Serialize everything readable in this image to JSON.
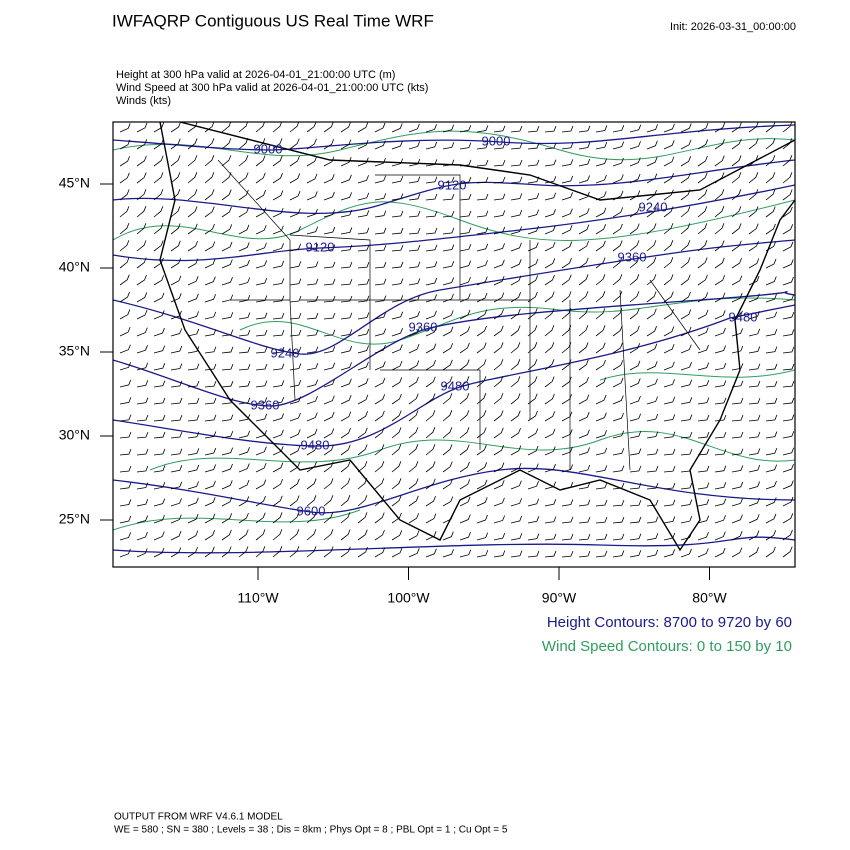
{
  "header": {
    "title": "IWFAQRP Contiguous US Real Time WRF",
    "init": "Init: 2026-03-31_00:00:00",
    "fields": [
      "Height at 300 hPa valid at 2026-04-01_21:00:00 UTC   (m)",
      "Wind Speed at 300 hPa valid at 2026-04-01_21:00:00 UTC   (kts)",
      "Winds   (kts)"
    ]
  },
  "map": {
    "lat_ticks": [
      {
        "value": 45,
        "label": "45°N"
      },
      {
        "value": 40,
        "label": "40°N"
      },
      {
        "value": 35,
        "label": "35°N"
      },
      {
        "value": 30,
        "label": "30°N"
      },
      {
        "value": 25,
        "label": "25°N"
      }
    ],
    "lon_ticks": [
      {
        "value": -110,
        "label": "110°W"
      },
      {
        "value": -100,
        "label": "100°W"
      },
      {
        "value": -90,
        "label": "90°W"
      },
      {
        "value": -80,
        "label": "80°W"
      }
    ],
    "contour_labels": [
      "9000",
      "9000",
      "9120",
      "9240",
      "9120",
      "9360",
      "9360",
      "9480",
      "9240",
      "9360",
      "9480",
      "9600",
      "9480"
    ]
  },
  "legend": {
    "height": "Height Contours: 8700 to 9720 by 60",
    "wind": "Wind Speed Contours: 0 to 150 by 10"
  },
  "footer": {
    "model": "OUTPUT FROM WRF V4.6.1 MODEL",
    "settings": "WE = 580 ; SN = 380 ; Levels = 38 ; Dis = 8km ; Phys Opt = 8 ; PBL Opt = 1 ; Cu Opt = 5"
  }
}
